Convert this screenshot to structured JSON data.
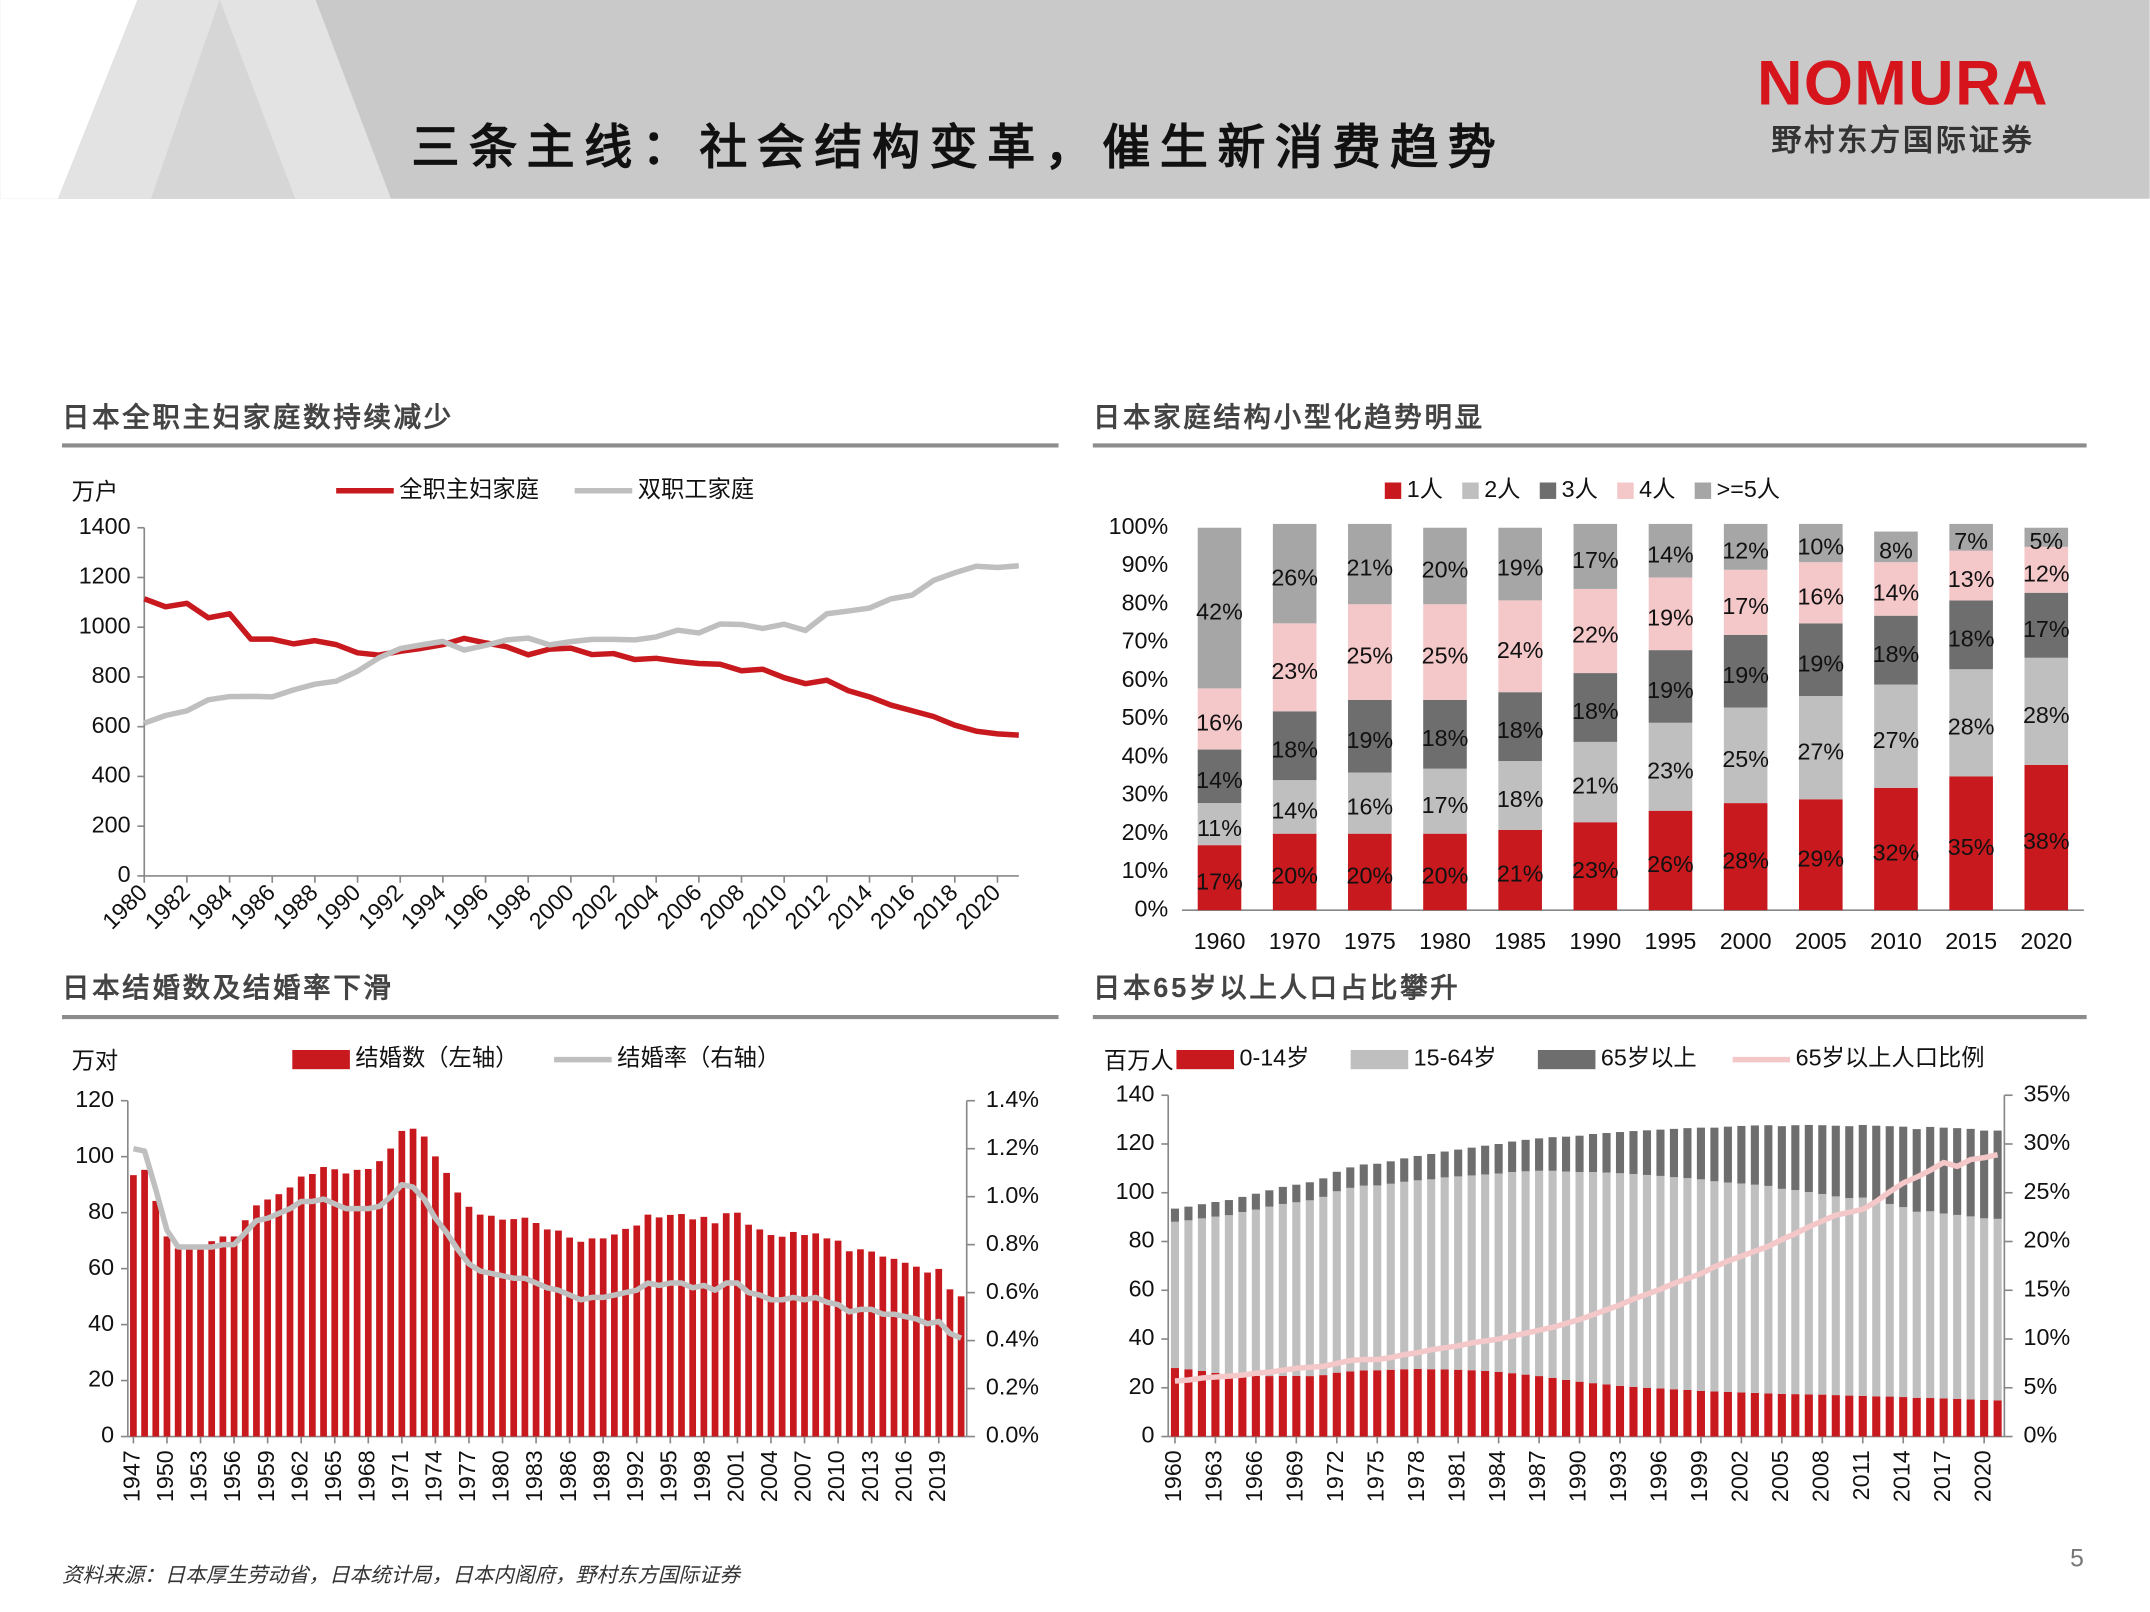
{
  "header": {
    "title": "三条主线：社会结构变革，催生新消费趋势",
    "logo": "NOMURA",
    "company": "野村东方国际证券"
  },
  "footer": {
    "source": "资料来源：日本厚生劳动省，日本统计局，日本内阁府，野村东方国际证券",
    "page": "5"
  },
  "chart_data": [
    {
      "type": "line",
      "title": "日本全职主妇家庭数持续减少",
      "y_label": "万户",
      "x": [
        1980,
        1981,
        1982,
        1983,
        1984,
        1985,
        1986,
        1987,
        1988,
        1989,
        1990,
        1991,
        1992,
        1993,
        1994,
        1995,
        1996,
        1997,
        1998,
        1999,
        2000,
        2001,
        2002,
        2003,
        2004,
        2005,
        2006,
        2007,
        2008,
        2009,
        2010,
        2011,
        2012,
        2013,
        2014,
        2015,
        2016,
        2017,
        2018,
        2019,
        2020,
        2021
      ],
      "xlim": [
        1980,
        2021
      ],
      "xticks": [
        1980,
        1982,
        1984,
        1986,
        1988,
        1990,
        1992,
        1994,
        1996,
        1998,
        2000,
        2002,
        2004,
        2006,
        2008,
        2010,
        2012,
        2014,
        2016,
        2018,
        2020
      ],
      "ylim": [
        0,
        1400
      ],
      "yticks": [
        0,
        200,
        400,
        600,
        800,
        1000,
        1200,
        1400
      ],
      "series": [
        {
          "name": "全职主妇家庭",
          "color": "#c8191e",
          "values": [
            1114,
            1082,
            1096,
            1038,
            1054,
            952,
            952,
            933,
            946,
            930,
            897,
            888,
            903,
            915,
            930,
            955,
            937,
            921,
            889,
            912,
            916,
            890,
            894,
            870,
            875,
            863,
            854,
            851,
            825,
            831,
            797,
            773,
            787,
            745,
            720,
            687,
            664,
            641,
            606,
            582,
            571,
            566
          ]
        },
        {
          "name": "双职工家庭",
          "color": "#bfbfbf",
          "values": [
            614,
            645,
            664,
            708,
            721,
            722,
            720,
            748,
            771,
            783,
            823,
            877,
            914,
            929,
            943,
            908,
            927,
            949,
            956,
            929,
            942,
            951,
            951,
            949,
            961,
            988,
            977,
            1013,
            1011,
            995,
            1012,
            987,
            1054,
            1065,
            1077,
            1114,
            1129,
            1188,
            1219,
            1245,
            1240,
            1247
          ]
        }
      ]
    },
    {
      "type": "stacked_bar",
      "title": "日本家庭结构小型化趋势明显",
      "categories": [
        "1960",
        "1970",
        "1975",
        "1980",
        "1985",
        "1990",
        "1995",
        "2000",
        "2005",
        "2010",
        "2015",
        "2020"
      ],
      "ylim": [
        0,
        100
      ],
      "yticks": [
        {
          "value": 0,
          "label": "0%"
        },
        {
          "value": 10,
          "label": "10%"
        },
        {
          "value": 20,
          "label": "20%"
        },
        {
          "value": 30,
          "label": "30%"
        },
        {
          "value": 40,
          "label": "40%"
        },
        {
          "value": 50,
          "label": "50%"
        },
        {
          "value": 60,
          "label": "60%"
        },
        {
          "value": 70,
          "label": "70%"
        },
        {
          "value": 80,
          "label": "80%"
        },
        {
          "value": 90,
          "label": "90%"
        },
        {
          "value": 100,
          "label": "100%"
        }
      ],
      "series": [
        {
          "name": "1人",
          "color": "#c8191e",
          "values": [
            17,
            20,
            20,
            20,
            21,
            23,
            26,
            28,
            29,
            32,
            35,
            38
          ],
          "value_labels": [
            "17%",
            "20%",
            "20%",
            "20%",
            "21%",
            "23%",
            "26%",
            "28%",
            "29%",
            "32%",
            "35%",
            "38%"
          ]
        },
        {
          "name": "2人",
          "color": "#bfbfbf",
          "values": [
            11,
            14,
            16,
            17,
            18,
            21,
            23,
            25,
            27,
            27,
            28,
            28
          ],
          "value_labels": [
            "11%",
            "14%",
            "16%",
            "17%",
            "18%",
            "21%",
            "23%",
            "25%",
            "27%",
            "27%",
            "28%",
            "28%"
          ]
        },
        {
          "name": "3人",
          "color": "#6e6e6e",
          "values": [
            14,
            18,
            19,
            18,
            18,
            18,
            19,
            19,
            19,
            18,
            18,
            17
          ],
          "value_labels": [
            "14%",
            "18%",
            "19%",
            "18%",
            "18%",
            "18%",
            "19%",
            "19%",
            "19%",
            "18%",
            "18%",
            "17%"
          ]
        },
        {
          "name": "4人",
          "color": "#f4c7c9",
          "values": [
            16,
            23,
            25,
            25,
            24,
            22,
            19,
            17,
            16,
            14,
            13,
            12
          ],
          "value_labels": [
            "16%",
            "23%",
            "25%",
            "25%",
            "24%",
            "22%",
            "19%",
            "17%",
            "16%",
            "14%",
            "13%",
            "12%"
          ]
        },
        {
          "name": ">=5人",
          "color": "#a6a6a6",
          "values": [
            42,
            26,
            21,
            20,
            19,
            17,
            14,
            12,
            10,
            8,
            7,
            5
          ],
          "value_labels": [
            "42%",
            "26%",
            "21%",
            "20%",
            "19%",
            "17%",
            "14%",
            "12%",
            "10%",
            "8%",
            "7%",
            "5%"
          ]
        }
      ]
    },
    {
      "type": "combo",
      "title": "日本结婚数及结婚率下滑",
      "y_label": "万对",
      "x": [
        1947,
        1948,
        1949,
        1950,
        1951,
        1952,
        1953,
        1954,
        1955,
        1956,
        1957,
        1958,
        1959,
        1960,
        1961,
        1962,
        1963,
        1964,
        1965,
        1966,
        1967,
        1968,
        1969,
        1970,
        1971,
        1972,
        1973,
        1974,
        1975,
        1976,
        1977,
        1978,
        1979,
        1980,
        1981,
        1982,
        1983,
        1984,
        1985,
        1986,
        1987,
        1988,
        1989,
        1990,
        1991,
        1992,
        1993,
        1994,
        1995,
        1996,
        1997,
        1998,
        1999,
        2000,
        2001,
        2002,
        2003,
        2004,
        2005,
        2006,
        2007,
        2008,
        2009,
        2010,
        2011,
        2012,
        2013,
        2014,
        2015,
        2016,
        2017,
        2018,
        2019,
        2020,
        2021
      ],
      "xlim": [
        1946.5,
        2021.5
      ],
      "xticks": [
        1947,
        1950,
        1953,
        1956,
        1959,
        1962,
        1965,
        1968,
        1971,
        1974,
        1977,
        1980,
        1983,
        1986,
        1989,
        1992,
        1995,
        1998,
        2001,
        2004,
        2007,
        2010,
        2013,
        2016,
        2019
      ],
      "ylim": [
        0,
        120
      ],
      "yticks": [
        0,
        20,
        40,
        60,
        80,
        100,
        120
      ],
      "y2lim": [
        0,
        1.4
      ],
      "y2ticks": [
        {
          "value": 0,
          "label": "0.0%"
        },
        {
          "value": 0.2,
          "label": "0.2%"
        },
        {
          "value": 0.4,
          "label": "0.4%"
        },
        {
          "value": 0.6,
          "label": "0.6%"
        },
        {
          "value": 0.8,
          "label": "0.8%"
        },
        {
          "value": 1.0,
          "label": "1.0%"
        },
        {
          "value": 1.2,
          "label": "1.2%"
        },
        {
          "value": 1.4,
          "label": "1.4%"
        }
      ],
      "series": [
        {
          "name": "结婚数（左轴）",
          "type": "bar",
          "color": "#c8191e",
          "values": [
            93.4,
            95.3,
            84.2,
            71.5,
            67.2,
            67.7,
            68.3,
            69.8,
            71.5,
            71.5,
            77.3,
            82.6,
            84.7,
            86.6,
            89.0,
            92.9,
            93.8,
            96.3,
            95.5,
            94.0,
            95.3,
            95.6,
            98.4,
            102.9,
            109.2,
            110.0,
            107.2,
            100.1,
            94.2,
            87.2,
            82.1,
            79.3,
            78.9,
            77.5,
            77.7,
            78.2,
            76.3,
            74.0,
            73.6,
            71.1,
            69.6,
            70.8,
            70.8,
            72.2,
            74.2,
            75.4,
            79.3,
            78.3,
            79.2,
            79.5,
            77.6,
            78.5,
            76.2,
            79.8,
            80.0,
            75.7,
            74.0,
            72.0,
            71.4,
            73.1,
            72.0,
            72.6,
            70.8,
            70.0,
            66.2,
            66.9,
            66.1,
            64.3,
            63.5,
            62.1,
            60.7,
            58.6,
            59.9,
            52.6,
            50.1
          ]
        },
        {
          "name": "结婚率（右轴）",
          "type": "line",
          "axis": "y2",
          "color": "#bfbfbf",
          "values": [
            1.2,
            1.19,
            1.03,
            0.86,
            0.79,
            0.79,
            0.79,
            0.79,
            0.8,
            0.8,
            0.85,
            0.9,
            0.91,
            0.93,
            0.95,
            0.98,
            0.98,
            0.99,
            0.97,
            0.95,
            0.95,
            0.95,
            0.96,
            1.0,
            1.05,
            1.04,
            0.99,
            0.91,
            0.85,
            0.78,
            0.72,
            0.69,
            0.68,
            0.67,
            0.66,
            0.66,
            0.64,
            0.62,
            0.61,
            0.59,
            0.57,
            0.58,
            0.58,
            0.59,
            0.6,
            0.61,
            0.64,
            0.63,
            0.64,
            0.64,
            0.62,
            0.63,
            0.61,
            0.64,
            0.64,
            0.6,
            0.59,
            0.57,
            0.57,
            0.58,
            0.57,
            0.58,
            0.56,
            0.55,
            0.52,
            0.53,
            0.53,
            0.51,
            0.51,
            0.5,
            0.49,
            0.47,
            0.48,
            0.43,
            0.41
          ]
        }
      ]
    },
    {
      "type": "combo",
      "stacked": true,
      "title": "日本65岁以上人口占比攀升",
      "y_label": "百万人",
      "x": [
        1960,
        1961,
        1962,
        1963,
        1964,
        1965,
        1966,
        1967,
        1968,
        1969,
        1970,
        1971,
        1972,
        1973,
        1974,
        1975,
        1976,
        1977,
        1978,
        1979,
        1980,
        1981,
        1982,
        1983,
        1984,
        1985,
        1986,
        1987,
        1988,
        1989,
        1990,
        1991,
        1992,
        1993,
        1994,
        1995,
        1996,
        1997,
        1998,
        1999,
        2000,
        2001,
        2002,
        2003,
        2004,
        2005,
        2006,
        2007,
        2008,
        2009,
        2010,
        2011,
        2012,
        2013,
        2014,
        2015,
        2016,
        2017,
        2018,
        2019,
        2020,
        2021
      ],
      "xlim": [
        1959.5,
        2021.5
      ],
      "xticks": [
        1960,
        1963,
        1966,
        1969,
        1972,
        1975,
        1978,
        1981,
        1984,
        1987,
        1990,
        1993,
        1996,
        1999,
        2002,
        2005,
        2008,
        2011,
        2014,
        2017,
        2020
      ],
      "ylim": [
        0,
        140
      ],
      "yticks": [
        0,
        20,
        40,
        60,
        80,
        100,
        120,
        140
      ],
      "y2lim": [
        0,
        35
      ],
      "y2ticks": [
        {
          "value": 0,
          "label": "0%"
        },
        {
          "value": 5,
          "label": "5%"
        },
        {
          "value": 10,
          "label": "10%"
        },
        {
          "value": 15,
          "label": "15%"
        },
        {
          "value": 20,
          "label": "20%"
        },
        {
          "value": 25,
          "label": "25%"
        },
        {
          "value": 30,
          "label": "30%"
        },
        {
          "value": 35,
          "label": "35%"
        }
      ],
      "series": [
        {
          "name": "0-14岁",
          "type": "bar",
          "color": "#c8191e",
          "values": [
            28.1,
            27.6,
            26.9,
            26.1,
            25.4,
            25.2,
            24.9,
            24.8,
            24.9,
            24.9,
            24.8,
            25.2,
            26.2,
            26.7,
            27.1,
            27.2,
            27.4,
            27.6,
            27.7,
            27.6,
            27.5,
            27.4,
            27.2,
            26.9,
            26.5,
            26.0,
            25.4,
            24.8,
            24.1,
            23.2,
            22.5,
            21.9,
            21.4,
            20.8,
            20.4,
            20.0,
            19.7,
            19.4,
            19.1,
            18.7,
            18.5,
            18.3,
            18.1,
            17.9,
            17.7,
            17.5,
            17.4,
            17.3,
            17.2,
            17.0,
            16.8,
            16.7,
            16.5,
            16.4,
            16.2,
            15.9,
            15.8,
            15.6,
            15.4,
            15.2,
            15.0,
            14.8
          ]
        },
        {
          "name": "15-64岁",
          "type": "bar",
          "color": "#bfbfbf",
          "values": [
            60.0,
            61.1,
            62.6,
            64.1,
            65.4,
            66.9,
            68.2,
            69.5,
            70.5,
            71.2,
            72.1,
            73.1,
            74.4,
            75.3,
            75.8,
            75.8,
            76.3,
            76.9,
            77.4,
            77.9,
            78.8,
            79.3,
            79.9,
            80.6,
            81.4,
            82.5,
            83.4,
            84.2,
            84.9,
            85.5,
            86.0,
            86.6,
            86.9,
            87.2,
            87.3,
            87.3,
            87.2,
            87.0,
            86.9,
            86.8,
            86.2,
            85.9,
            85.7,
            85.4,
            85.1,
            84.1,
            83.7,
            83.0,
            82.3,
            81.5,
            81.0,
            81.3,
            80.2,
            79.0,
            77.9,
            76.3,
            76.6,
            75.9,
            75.5,
            75.1,
            74.5,
            74.5
          ]
        },
        {
          "name": "65岁以上",
          "type": "bar",
          "color": "#6e6e6e",
          "values": [
            5.4,
            5.6,
            5.8,
            6.0,
            6.2,
            6.2,
            6.5,
            6.7,
            7.0,
            7.2,
            7.4,
            7.6,
            8.0,
            8.4,
            8.7,
            8.9,
            9.2,
            9.6,
            10.0,
            10.4,
            10.6,
            11.0,
            11.4,
            11.8,
            12.1,
            12.5,
            12.9,
            13.3,
            13.8,
            14.3,
            14.9,
            15.6,
            16.2,
            16.9,
            17.6,
            18.3,
            19.0,
            19.8,
            20.5,
            21.2,
            22.0,
            22.9,
            23.6,
            24.3,
            24.9,
            25.7,
            26.6,
            27.5,
            28.2,
            29.0,
            29.5,
            29.8,
            30.8,
            31.9,
            33.0,
            33.9,
            34.6,
            35.2,
            35.6,
            35.9,
            36.0,
            36.2
          ]
        },
        {
          "name": "65岁以上人口比例",
          "type": "line",
          "axis": "y2",
          "color": "#f4c7c9",
          "values": [
            5.7,
            5.8,
            6.0,
            6.1,
            6.2,
            6.3,
            6.5,
            6.6,
            6.8,
            7.0,
            7.1,
            7.2,
            7.5,
            7.8,
            7.9,
            7.9,
            8.1,
            8.4,
            8.6,
            8.9,
            9.1,
            9.3,
            9.6,
            9.8,
            10.0,
            10.3,
            10.6,
            10.9,
            11.2,
            11.6,
            12.0,
            12.5,
            13.0,
            13.5,
            14.1,
            14.6,
            15.1,
            15.7,
            16.2,
            16.7,
            17.4,
            18.0,
            18.5,
            19.0,
            19.5,
            20.2,
            20.8,
            21.5,
            22.1,
            22.7,
            23.0,
            23.3,
            24.1,
            25.1,
            26.0,
            26.6,
            27.3,
            28.1,
            27.7,
            28.4,
            28.6,
            28.9
          ]
        }
      ]
    }
  ]
}
